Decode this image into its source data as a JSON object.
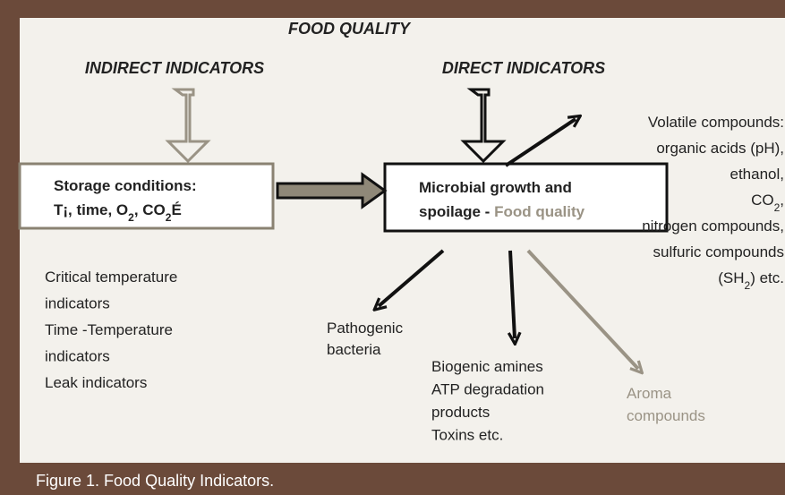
{
  "title": "FOOD QUALITY",
  "indirect": {
    "heading": "INDIRECT INDICATORS",
    "box": {
      "line1": "Storage conditions:",
      "line2": [
        "T¡, time, O",
        "2",
        ", CO",
        "2",
        "É"
      ]
    },
    "list": [
      "Critical temperature",
      "indicators",
      "Time -Temperature",
      "indicators",
      "Leak indicators"
    ]
  },
  "direct": {
    "heading": "DIRECT INDICATORS",
    "box": {
      "line1": "Microbial growth and",
      "line2": "spoilage - ",
      "line2_highlight": "Food quality"
    },
    "volatile": [
      "Volatile compounds:",
      "organic acids (pH),",
      "ethanol,",
      [
        "CO",
        "2",
        ","
      ],
      "nitrogen compounds,",
      "sulfuric compounds",
      [
        "(SH",
        "2",
        ") etc."
      ]
    ],
    "pathogenic": [
      "Pathogenic",
      "bacteria"
    ],
    "amines": [
      "Biogenic amines",
      "ATP degradation",
      "products",
      "Toxins etc."
    ],
    "aroma": [
      "Aroma",
      "compounds"
    ]
  },
  "caption": "Figure 1. Food Quality Indicators."
}
